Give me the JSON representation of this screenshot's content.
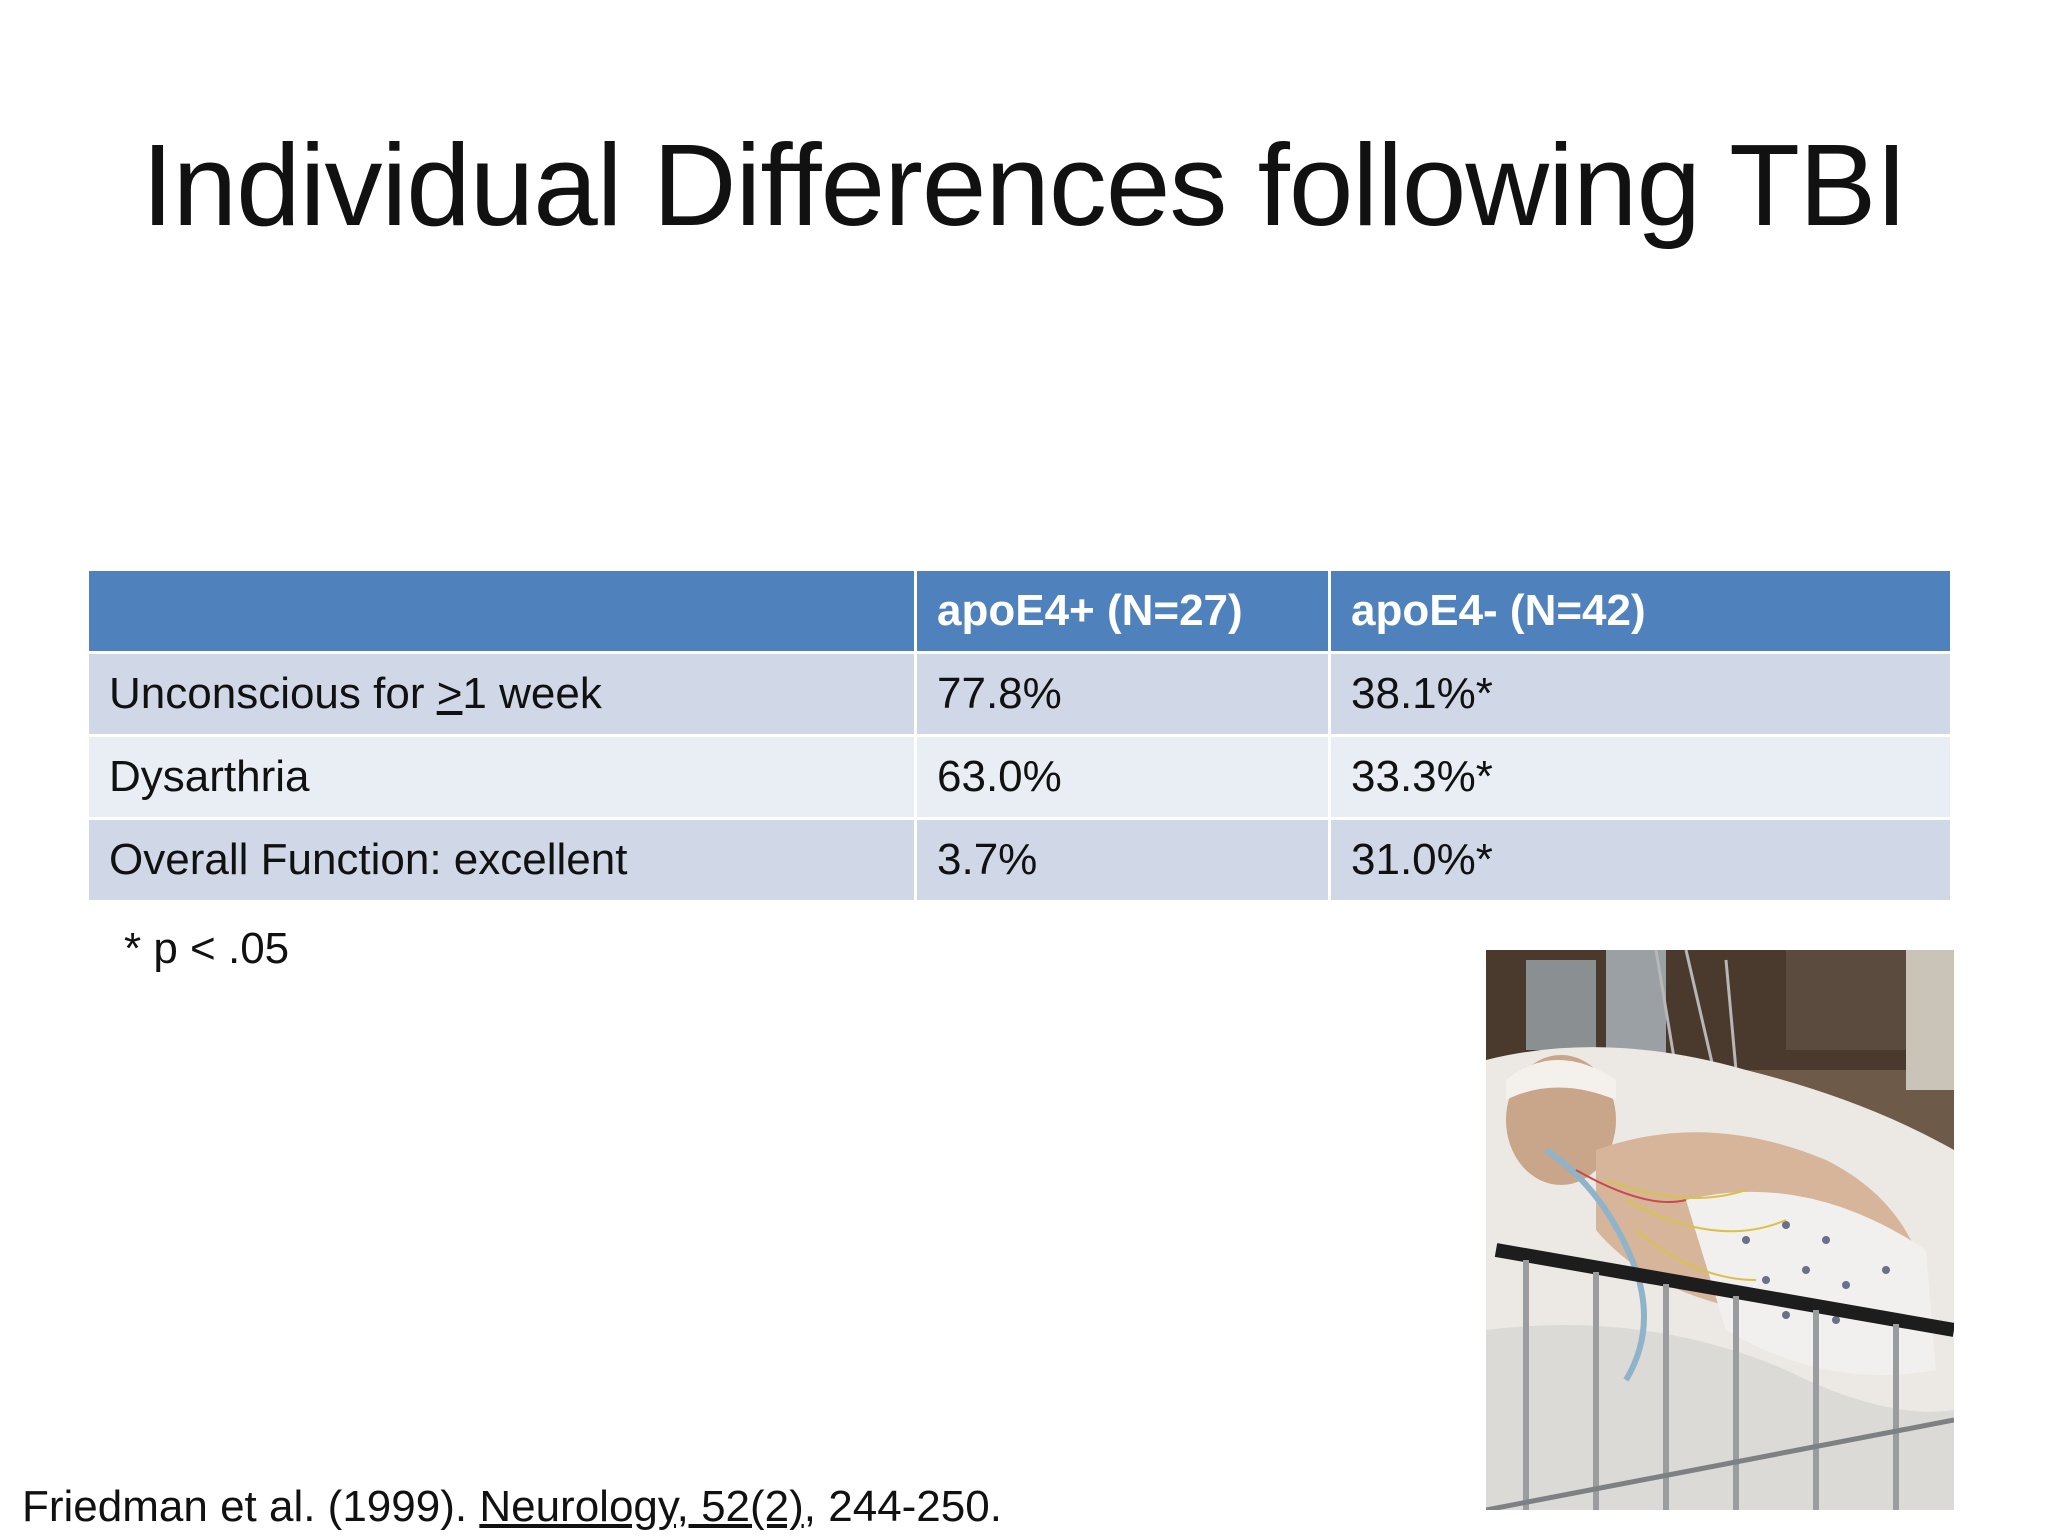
{
  "slide": {
    "title": "Individual Differences following TBI"
  },
  "table": {
    "headers": [
      "",
      "apoE4+ (N=27)",
      "apoE4- (N=42)"
    ],
    "rows": [
      {
        "label_prefix": "Unconscious for ",
        "label_ge": ">",
        "label_suffix": "1 week",
        "apoe4_pos": "77.8%",
        "apoe4_neg": "38.1%*"
      },
      {
        "label": "Dysarthria",
        "apoe4_pos": "63.0%",
        "apoe4_neg": "33.3%*"
      },
      {
        "label": "Overall Function: excellent",
        "apoe4_pos": "3.7%",
        "apoe4_neg": "31.0%*"
      }
    ]
  },
  "footnote": "* p < .05",
  "citation": {
    "authors": "Friedman et al. (1999). ",
    "journal": "Neurology, 52(2)",
    "pages": ", 244-250."
  },
  "image": {
    "icon": "hospital-patient-photo"
  },
  "colors": {
    "header_bg": "#4f81bd",
    "row_odd_bg": "#d0d8e8",
    "row_even_bg": "#e9edf4"
  }
}
